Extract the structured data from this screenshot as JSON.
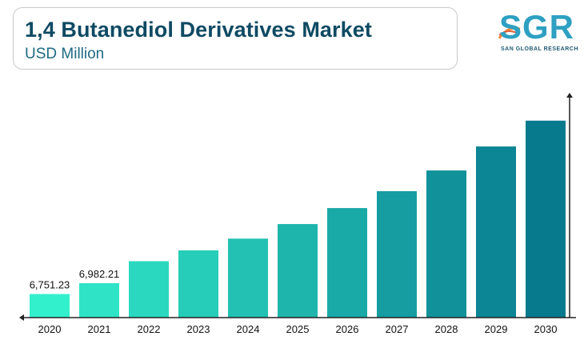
{
  "header": {
    "title": "1,4 Butanediol Derivatives Market",
    "subtitle": "USD Million"
  },
  "logo": {
    "letters": "SGR",
    "tagline": "SAN GLOBAL RESEARCH",
    "icon": "sgr-logo-icon",
    "colors": {
      "letters": "#2ea0c2",
      "swoosh": "#f08a3c"
    }
  },
  "chart_data": {
    "type": "bar",
    "title": "1,4 Butanediol Derivatives Market",
    "subtitle": "USD Million",
    "categories": [
      "2020",
      "2021",
      "2022",
      "2023",
      "2024",
      "2025",
      "2026",
      "2027",
      "2028",
      "2029",
      "2030"
    ],
    "values": [
      6751.23,
      6982.21,
      7450,
      7680,
      7930,
      8240,
      8580,
      8940,
      9380,
      9890,
      10440
    ],
    "data_labels": [
      "6,751.23",
      "6,982.21",
      "",
      "",
      "",
      "",
      "",
      "",
      "",
      "",
      ""
    ],
    "ylim": [
      6250,
      10930
    ],
    "colors": {
      "start": "#33f0cc",
      "end": "#087a8e"
    },
    "grid": false,
    "legend": "none"
  }
}
